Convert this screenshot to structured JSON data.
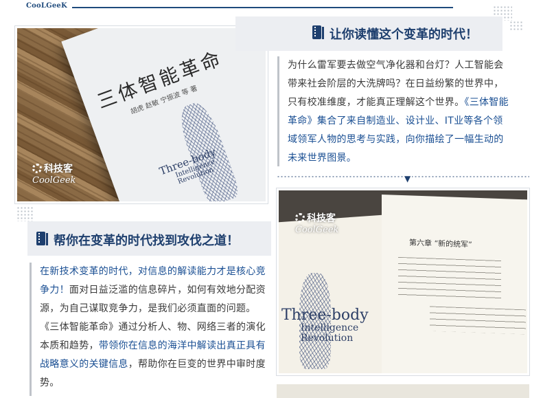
{
  "brand": "CooLGeeK",
  "section1": {
    "heading": "让你读懂这个变革的时代！",
    "paragraph": [
      {
        "text": "为什么雷军要去做空气净化器和台灯？人工智能会带来社会阶层的大洗牌吗？在日益纷繁的世界中，只有校准维度，才能真正理解这个世界。",
        "highlight": false
      },
      {
        "text": "《三体智能革命》集合了来自制造业、设计业、IT业等各个领域领军人物的思考与实践，向你描绘了一幅生动的未来世界图景。",
        "highlight": true
      }
    ]
  },
  "section2": {
    "heading": "帮你在变革的时代找到攻伐之道！",
    "paragraph": [
      {
        "text": "在新技术变革的时代，对信息的解读能力才是核心竞争力！",
        "highlight": true
      },
      {
        "text": "面对日益泛滥的信息碎片，如何有效地分配资源，为自己谋取竞争力，是我们必须直面的问题。《三体智能革命》通过分析人、物、网络三者的演化本质和趋势，",
        "highlight": false
      },
      {
        "text": "带领你在信息的海洋中解读出真正具有战略意义的关键信息",
        "highlight": true
      },
      {
        "text": "，帮助你在巨变的世界中审时度势。",
        "highlight": false
      }
    ]
  },
  "photo1": {
    "cover_title": "三体智能革命",
    "cover_authors": "胡虎 赵敏 宁振波 等 著",
    "cover_en": [
      "Three-body",
      "Intelligence",
      "Revolution"
    ],
    "watermark_cn": "科技客",
    "watermark_en": "CoolGeek"
  },
  "photo2": {
    "chapter": "第六章 “新的统军”",
    "cover_en": [
      "Three-body",
      "Intelligence",
      "Revolution"
    ],
    "watermark_cn": "科技客",
    "watermark_en": "CoolGeek"
  },
  "colors": {
    "accent": "#1e3f6e",
    "highlight": "#1a4f93",
    "heading_bg": "#eceef2"
  }
}
